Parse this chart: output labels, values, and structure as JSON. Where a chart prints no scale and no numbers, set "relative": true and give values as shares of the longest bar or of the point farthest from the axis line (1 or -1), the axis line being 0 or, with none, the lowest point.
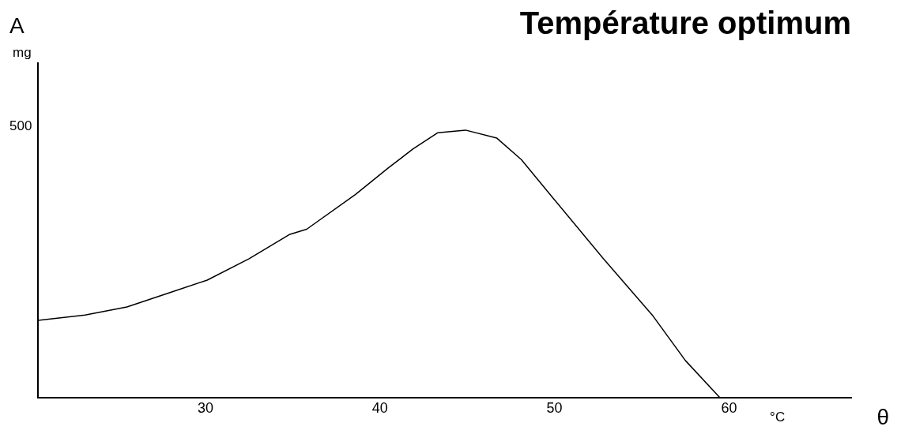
{
  "chart_data": {
    "type": "line",
    "title": "Température optimum",
    "xlabel": "θ",
    "ylabel": "A",
    "annotations": [
      "mg",
      "500",
      "°C"
    ],
    "relative": true,
    "x": [
      20.4,
      23.1,
      25.5,
      27.8,
      30.1,
      32.5,
      34.8,
      35.8,
      38.6,
      40.5,
      41.9,
      43.3,
      44.9,
      46.7,
      48.1,
      50.0,
      52.8,
      55.6,
      57.5,
      59.5
    ],
    "series": [
      {
        "color": "#000000",
        "values": [
          0.29,
          0.31,
          0.34,
          0.39,
          0.44,
          0.52,
          0.61,
          0.63,
          0.76,
          0.86,
          0.93,
          0.99,
          1,
          0.97,
          0.89,
          0.74,
          0.52,
          0.31,
          0.14,
          0
        ]
      }
    ],
    "xlim": [
      20.4,
      67
    ],
    "xticks": [
      30,
      40,
      50,
      60
    ],
    "grid": false,
    "legend": false,
    "marker": "none",
    "line_style": "solid"
  }
}
